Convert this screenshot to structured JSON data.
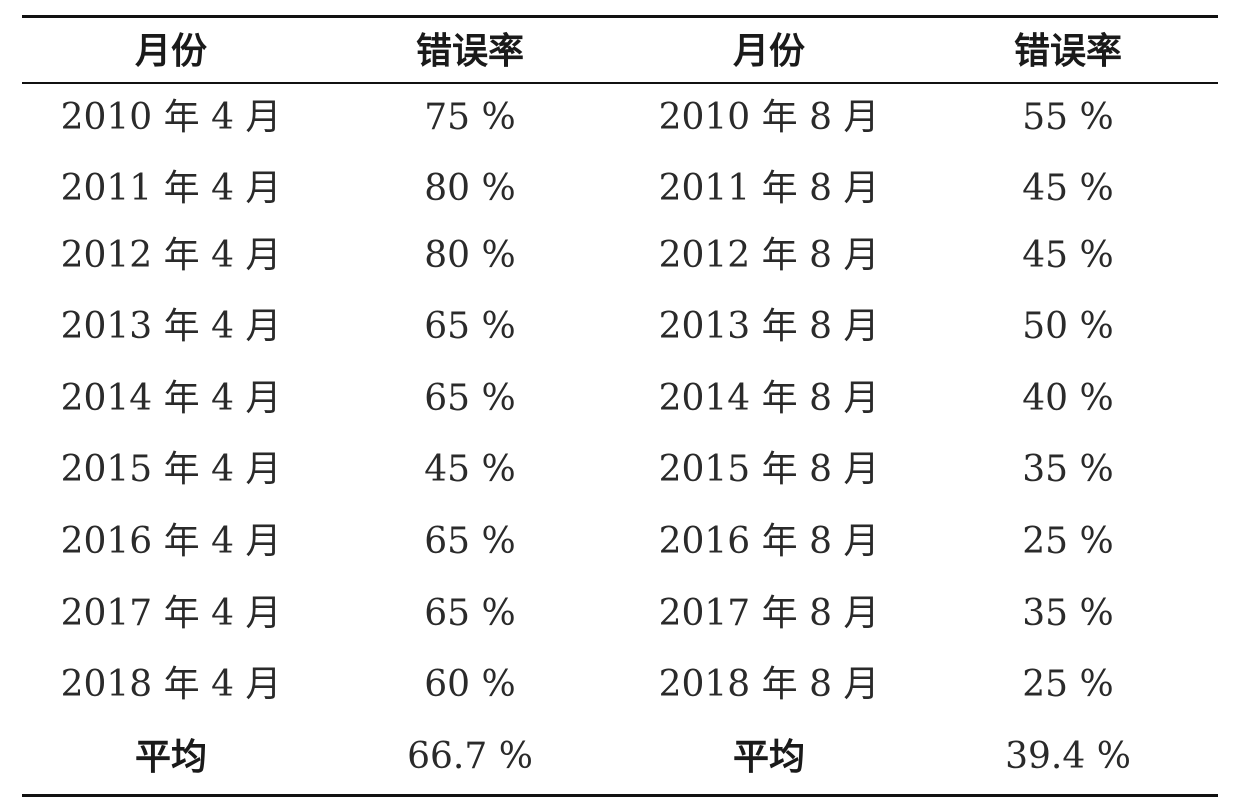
{
  "table": {
    "headers": [
      "月份",
      "错误率",
      "月份",
      "错误率"
    ],
    "rows": [
      [
        "2010 年 4 月",
        "75 %",
        "2010 年 8 月",
        "55 %"
      ],
      [
        "2011 年 4 月",
        "80 %",
        "2011 年 8 月",
        "45 %"
      ],
      [
        "2012 年 4 月",
        "80 %",
        "2012 年 8 月",
        "45 %"
      ],
      [
        "2013 年 4 月",
        "65 %",
        "2013 年 8 月",
        "50 %"
      ],
      [
        "2014 年 4 月",
        "65 %",
        "2014 年 8 月",
        "40 %"
      ],
      [
        "2015 年 4 月",
        "45 %",
        "2015 年 8 月",
        "35 %"
      ],
      [
        "2016 年 4 月",
        "65 %",
        "2016 年 8 月",
        "25 %"
      ],
      [
        "2017 年 4 月",
        "65 %",
        "2017 年 8 月",
        "35 %"
      ],
      [
        "2018 年 4 月",
        "60 %",
        "2018 年 8 月",
        "25 %"
      ]
    ],
    "summary": [
      "平均",
      "66.7 %",
      "平均",
      "39.4 %"
    ]
  }
}
